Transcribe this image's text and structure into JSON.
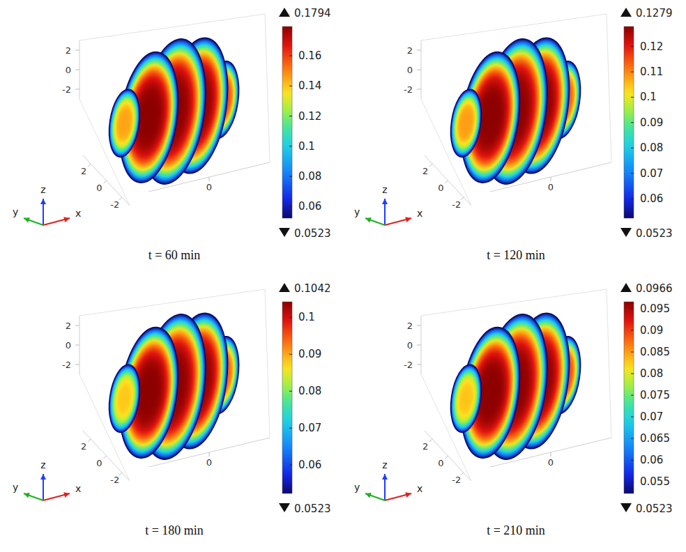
{
  "chart_data": [
    {
      "type": "slice3d",
      "title": "t = 60 min",
      "axis_labels": {
        "x": "x",
        "y": "y",
        "z": "z"
      },
      "xlim": [
        -3,
        3
      ],
      "xticks": [
        0
      ],
      "ylim": [
        -3,
        3
      ],
      "yticks": [
        -2,
        0,
        2
      ],
      "zlim": [
        -3,
        3
      ],
      "zticks": [
        -2,
        0,
        2
      ],
      "colorbar": {
        "range": [
          0.0523,
          0.1794
        ],
        "ticks": [
          0.06,
          0.08,
          0.1,
          0.12,
          0.14,
          0.16
        ]
      },
      "slices": [
        {
          "x": -2.4,
          "radius": 1.4,
          "peak": 0.145
        },
        {
          "x": -1.2,
          "radius": 2.7,
          "peak": 0.1794
        },
        {
          "x": 0,
          "radius": 3.0,
          "peak": 0.1794
        },
        {
          "x": 1.2,
          "radius": 2.8,
          "peak": 0.1794
        },
        {
          "x": 2.4,
          "radius": 1.6,
          "peak": 0.16
        }
      ]
    },
    {
      "type": "slice3d",
      "title": "t = 120 min",
      "axis_labels": {
        "x": "x",
        "y": "y",
        "z": "z"
      },
      "xlim": [
        -3,
        3
      ],
      "xticks": [
        0
      ],
      "ylim": [
        -3,
        3
      ],
      "yticks": [
        -2,
        0,
        2
      ],
      "zlim": [
        -3,
        3
      ],
      "zticks": [
        -2,
        0,
        2
      ],
      "colorbar": {
        "range": [
          0.0523,
          0.1279
        ],
        "ticks": [
          0.06,
          0.07,
          0.08,
          0.09,
          0.1,
          0.11,
          0.12
        ]
      },
      "slices": [
        {
          "x": -2.4,
          "radius": 1.4,
          "peak": 0.108
        },
        {
          "x": -1.2,
          "radius": 2.7,
          "peak": 0.1279
        },
        {
          "x": 0,
          "radius": 3.0,
          "peak": 0.1279
        },
        {
          "x": 1.2,
          "radius": 2.8,
          "peak": 0.1279
        },
        {
          "x": 2.4,
          "radius": 1.6,
          "peak": 0.115
        }
      ]
    },
    {
      "type": "slice3d",
      "title": "t = 180 min",
      "axis_labels": {
        "x": "x",
        "y": "y",
        "z": "z"
      },
      "xlim": [
        -3,
        3
      ],
      "xticks": [
        0
      ],
      "ylim": [
        -3,
        3
      ],
      "yticks": [
        -2,
        0,
        2
      ],
      "zlim": [
        -3,
        3
      ],
      "zticks": [
        -2,
        0,
        2
      ],
      "colorbar": {
        "range": [
          0.0523,
          0.1042
        ],
        "ticks": [
          0.06,
          0.07,
          0.08,
          0.09,
          0.1
        ]
      },
      "slices": [
        {
          "x": -2.4,
          "radius": 1.4,
          "peak": 0.088
        },
        {
          "x": -1.2,
          "radius": 2.7,
          "peak": 0.1042
        },
        {
          "x": 0,
          "radius": 3.0,
          "peak": 0.1042
        },
        {
          "x": 1.2,
          "radius": 2.8,
          "peak": 0.1042
        },
        {
          "x": 2.4,
          "radius": 1.6,
          "peak": 0.095
        }
      ]
    },
    {
      "type": "slice3d",
      "title": "t = 210 min",
      "axis_labels": {
        "x": "x",
        "y": "y",
        "z": "z"
      },
      "xlim": [
        -3,
        3
      ],
      "xticks": [
        0
      ],
      "ylim": [
        -3,
        3
      ],
      "yticks": [
        -2,
        0,
        2
      ],
      "zlim": [
        -3,
        3
      ],
      "zticks": [
        -2,
        0,
        2
      ],
      "colorbar": {
        "range": [
          0.0523,
          0.0966
        ],
        "ticks": [
          0.055,
          0.06,
          0.065,
          0.07,
          0.075,
          0.08,
          0.085,
          0.09,
          0.095
        ]
      },
      "slices": [
        {
          "x": -2.4,
          "radius": 1.4,
          "peak": 0.083
        },
        {
          "x": -1.2,
          "radius": 2.7,
          "peak": 0.0966
        },
        {
          "x": 0,
          "radius": 3.0,
          "peak": 0.0966
        },
        {
          "x": 1.2,
          "radius": 2.8,
          "peak": 0.0966
        },
        {
          "x": 2.4,
          "radius": 1.6,
          "peak": 0.09
        }
      ]
    }
  ]
}
